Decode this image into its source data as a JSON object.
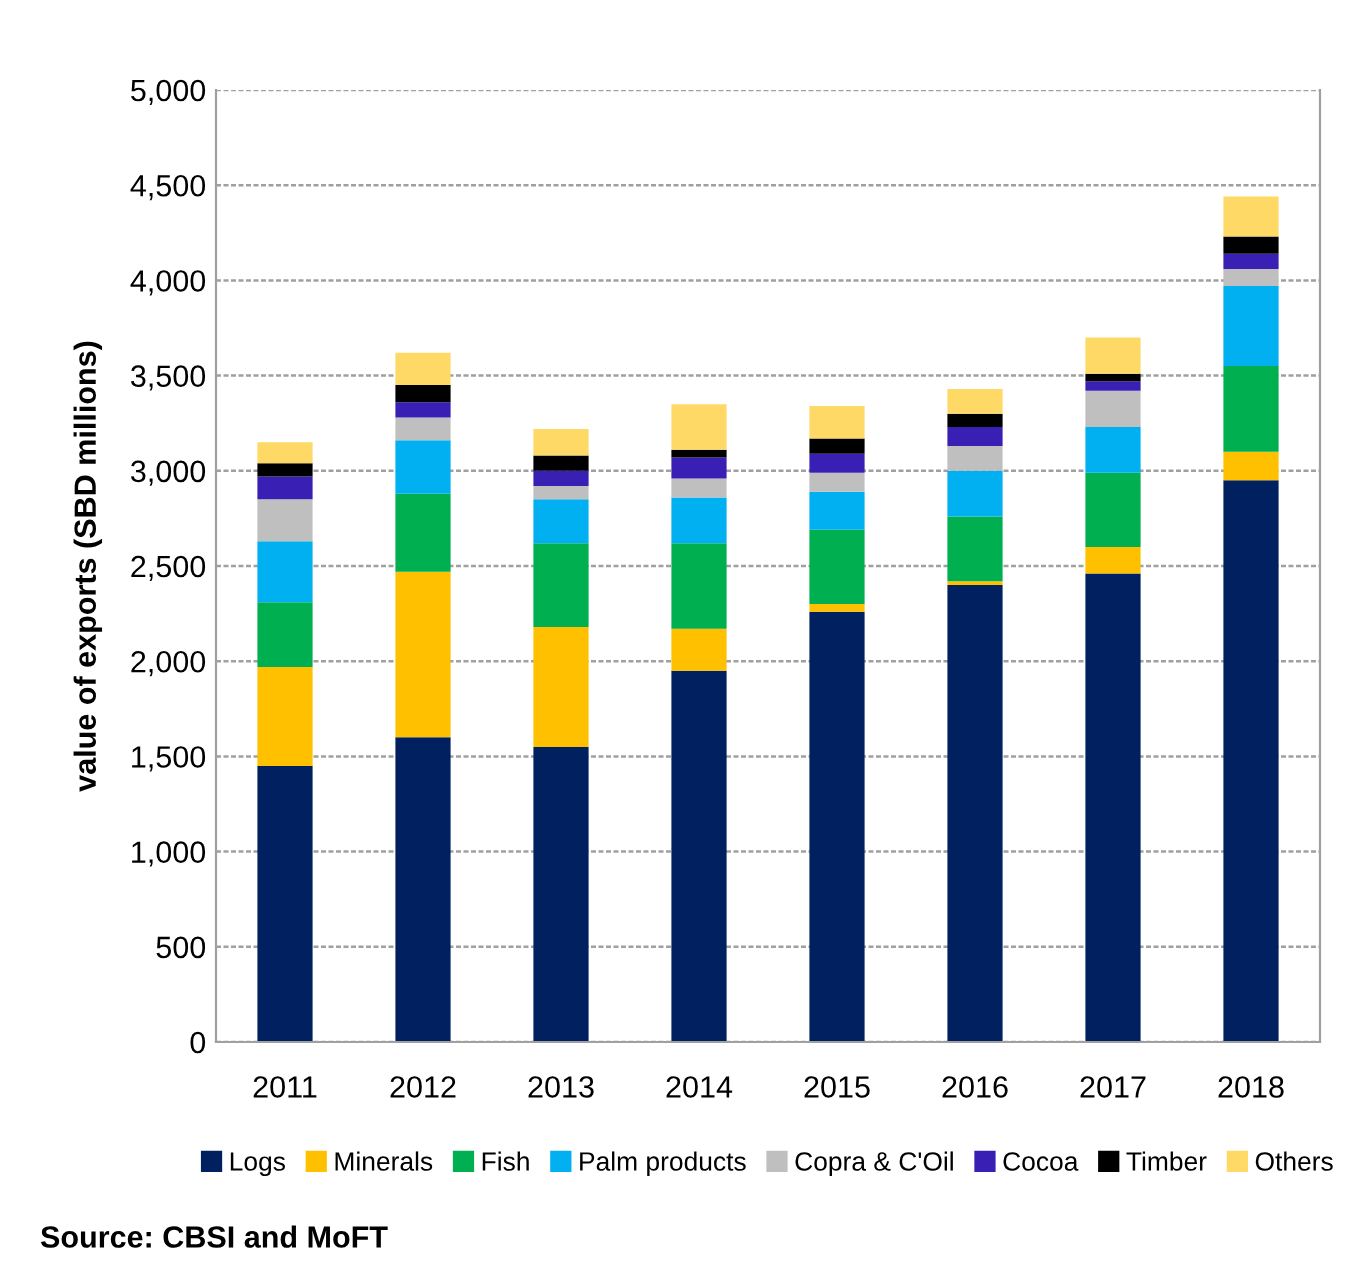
{
  "chart_data": {
    "type": "bar",
    "stacked": true,
    "ylabel": "value of exports (SBD millions)",
    "categories": [
      "2011",
      "2012",
      "2013",
      "2014",
      "2015",
      "2016",
      "2017",
      "2018"
    ],
    "series": [
      {
        "name": "Logs",
        "color": "#002060",
        "values": [
          1450,
          1600,
          1550,
          1950,
          2260,
          2400,
          2460,
          2950
        ]
      },
      {
        "name": "Minerals",
        "color": "#ffc000",
        "values": [
          520,
          870,
          630,
          220,
          40,
          20,
          140,
          150
        ]
      },
      {
        "name": "Fish",
        "color": "#00b050",
        "values": [
          340,
          410,
          440,
          450,
          390,
          340,
          390,
          450
        ]
      },
      {
        "name": "Palm products",
        "color": "#00b0f0",
        "values": [
          320,
          280,
          230,
          240,
          200,
          240,
          240,
          420
        ]
      },
      {
        "name": "Copra & C'Oil",
        "color": "#bfbfbf",
        "values": [
          220,
          120,
          70,
          100,
          100,
          130,
          190,
          90
        ]
      },
      {
        "name": "Cocoa",
        "color": "#3a1fb5",
        "values": [
          120,
          80,
          80,
          110,
          100,
          100,
          50,
          80
        ]
      },
      {
        "name": "Timber",
        "color": "#000000",
        "values": [
          70,
          90,
          80,
          40,
          80,
          70,
          40,
          90
        ]
      },
      {
        "name": "Others",
        "color": "#ffd966",
        "values": [
          110,
          170,
          140,
          240,
          170,
          130,
          190,
          210
        ]
      }
    ],
    "ylim": [
      0,
      5000
    ],
    "yticks": [
      0,
      500,
      {
        "value": 1000,
        "label": "1,000"
      },
      {
        "value": 1500,
        "label": "1,500"
      },
      {
        "value": 2000,
        "label": "2,000"
      },
      {
        "value": 2500,
        "label": "2,500"
      },
      {
        "value": 3000,
        "label": "3,000"
      },
      {
        "value": 3500,
        "label": "3,500"
      },
      {
        "value": 4000,
        "label": "4,000"
      },
      {
        "value": 4500,
        "label": "4,500"
      },
      {
        "value": 5000,
        "label": "5,000"
      }
    ],
    "grid": "y",
    "legend": "bottom",
    "annotations": [
      "Source: CBSI and MoFT"
    ]
  }
}
